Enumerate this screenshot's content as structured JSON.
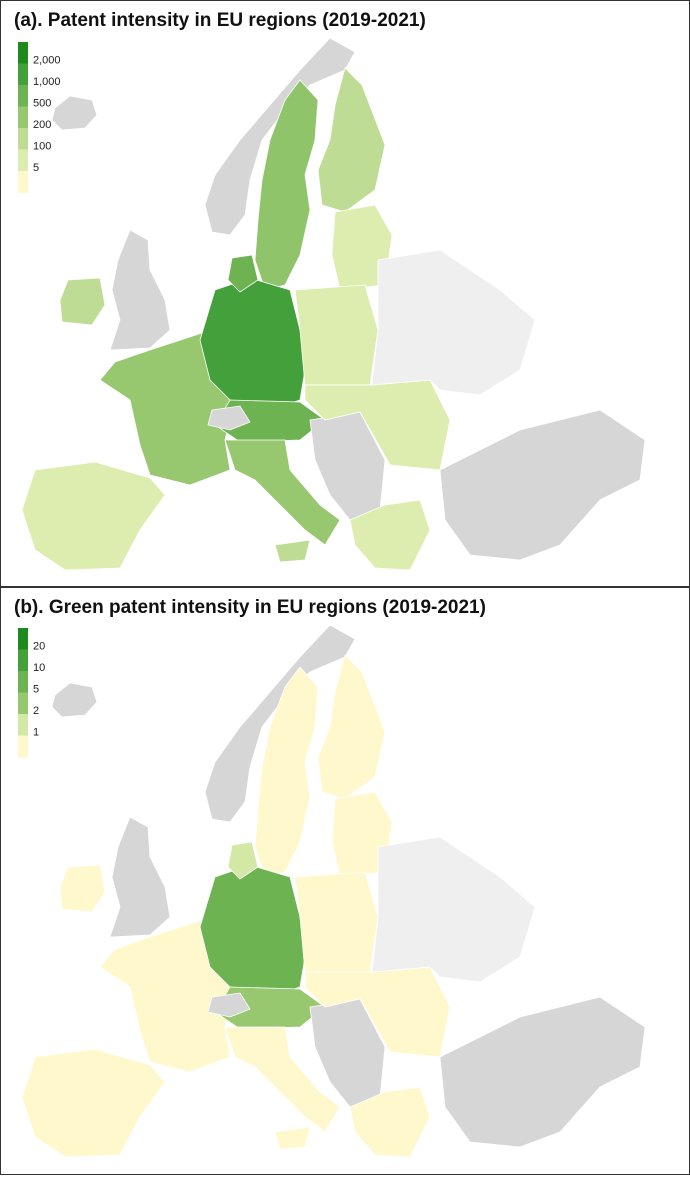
{
  "panels": [
    {
      "title": "(a). Patent intensity in EU regions (2019-2021)",
      "legend": {
        "labels": [
          "2,000",
          "1,000",
          "500",
          "200",
          "100",
          "5"
        ],
        "colors": [
          "#1e8a1e",
          "#44a03a",
          "#6db352",
          "#97c76f",
          "#bfdc95",
          "#ddedb0",
          "#fff8cc"
        ]
      }
    },
    {
      "title": "(b). Green patent intensity in EU regions (2019-2021)",
      "legend": {
        "labels": [
          "20",
          "10",
          "5",
          "2",
          "1"
        ],
        "colors": [
          "#1e8a1e",
          "#44a03a",
          "#6db352",
          "#97c76f",
          "#d4e8a6",
          "#fff8cc"
        ]
      }
    }
  ]
}
